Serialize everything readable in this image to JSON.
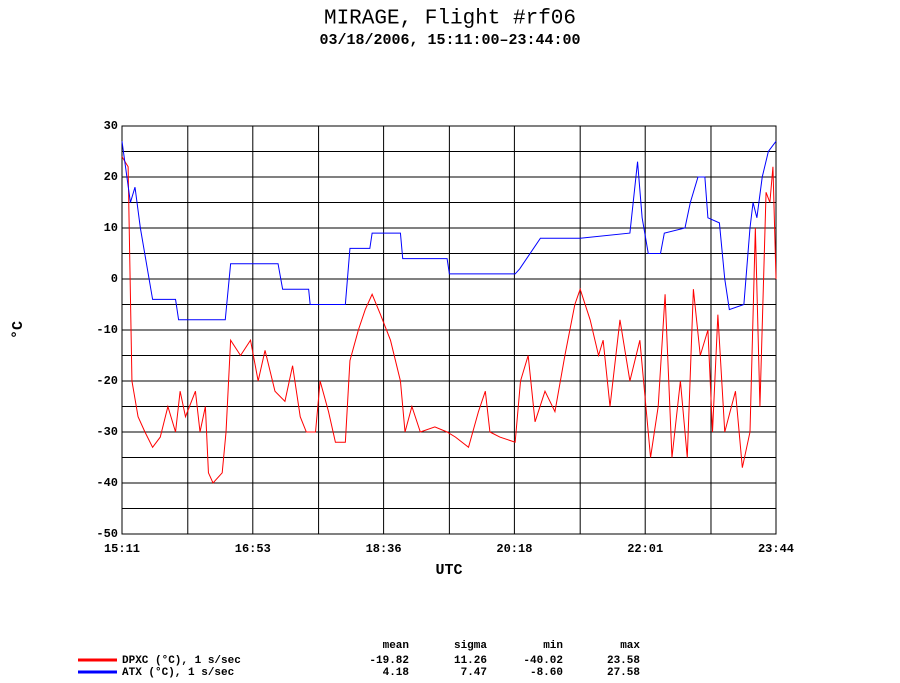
{
  "chart_data": {
    "type": "line",
    "title": "MIRAGE, Flight #rf06",
    "subtitle": "03/18/2006, 15:11:00–23:44:00",
    "x_label": "UTC",
    "y_label": "°C",
    "xlim": [
      15.18,
      23.73
    ],
    "xticks": [
      {
        "value": 15.18,
        "label": "15:11"
      },
      {
        "value": 16.89,
        "label": "16:53"
      },
      {
        "value": 18.6,
        "label": "18:36"
      },
      {
        "value": 20.31,
        "label": "20:18"
      },
      {
        "value": 22.02,
        "label": "22:01"
      },
      {
        "value": 23.73,
        "label": "23:44"
      }
    ],
    "minor_xticks": [
      16.04,
      17.75,
      19.46,
      21.17,
      22.88
    ],
    "ylim": [
      -50,
      30
    ],
    "yticks": [
      -50,
      -40,
      -30,
      -20,
      -10,
      0,
      10,
      20,
      30
    ],
    "minor_yticks": [
      -45,
      -35,
      -25,
      -15,
      -5,
      5,
      15,
      25
    ],
    "grid": true,
    "stats_columns": [
      "mean",
      "sigma",
      "min",
      "max"
    ],
    "series": [
      {
        "name": "DPXC (°C), 1 s/sec",
        "color": "#ff0000",
        "x": [
          15.18,
          15.26,
          15.31,
          15.39,
          15.48,
          15.58,
          15.68,
          15.78,
          15.88,
          15.94,
          16.01,
          16.14,
          16.2,
          16.27,
          16.31,
          16.37,
          16.49,
          16.54,
          16.6,
          16.73,
          16.86,
          16.96,
          17.05,
          17.18,
          17.31,
          17.41,
          17.51,
          17.59,
          17.71,
          17.77,
          17.88,
          17.97,
          18.1,
          18.16,
          18.27,
          18.36,
          18.45,
          18.56,
          18.69,
          18.82,
          18.88,
          18.97,
          19.08,
          19.27,
          19.43,
          19.54,
          19.71,
          19.84,
          19.93,
          19.99,
          20.12,
          20.32,
          20.39,
          20.49,
          20.58,
          20.71,
          20.84,
          20.97,
          21.1,
          21.17,
          21.3,
          21.41,
          21.47,
          21.56,
          21.69,
          21.82,
          21.95,
          22.09,
          22.19,
          22.28,
          22.37,
          22.48,
          22.57,
          22.65,
          22.74,
          22.84,
          22.9,
          22.97,
          23.06,
          23.2,
          23.29,
          23.39,
          23.46,
          23.52,
          23.6,
          23.65,
          23.69,
          23.73
        ],
        "values": [
          24,
          22,
          -20,
          -27,
          -30,
          -33,
          -31,
          -25,
          -30,
          -22,
          -27,
          -22,
          -30,
          -25,
          -38,
          -40,
          -38,
          -30,
          -12,
          -15,
          -12,
          -20,
          -14,
          -22,
          -24,
          -17,
          -27,
          -30,
          -30,
          -20,
          -26,
          -32,
          -32,
          -16,
          -10,
          -6,
          -3,
          -7,
          -12,
          -20,
          -30,
          -25,
          -30,
          -29,
          -30,
          -31,
          -33,
          -26,
          -22,
          -30,
          -31,
          -32,
          -20,
          -15,
          -28,
          -22,
          -26,
          -15,
          -5,
          -2,
          -8,
          -15,
          -12,
          -25,
          -8,
          -20,
          -12,
          -35,
          -25,
          -3,
          -35,
          -20,
          -35,
          -2,
          -15,
          -10,
          -30,
          -7,
          -30,
          -22,
          -37,
          -30,
          10,
          -25,
          17,
          15,
          22,
          0
        ],
        "stats": [
          -19.82,
          11.26,
          -40.02,
          23.58
        ]
      },
      {
        "name": "ATX (°C), 1 s/sec",
        "color": "#0000ff",
        "x": [
          15.18,
          15.29,
          15.35,
          15.42,
          15.58,
          15.88,
          15.92,
          16.53,
          16.6,
          17.22,
          17.28,
          17.62,
          17.64,
          18.1,
          18.16,
          18.42,
          18.45,
          18.82,
          18.85,
          19.43,
          19.46,
          20.32,
          20.38,
          20.65,
          21.17,
          21.82,
          21.92,
          21.98,
          22.06,
          22.22,
          22.27,
          22.54,
          22.61,
          22.71,
          22.8,
          22.84,
          22.99,
          23.06,
          23.12,
          23.31,
          23.39,
          23.43,
          23.48,
          23.55,
          23.63,
          23.73
        ],
        "values": [
          27,
          15,
          18,
          10,
          -4,
          -4,
          -8,
          -8,
          3,
          3,
          -2,
          -2,
          -5,
          -5,
          6,
          6,
          9,
          9,
          4,
          4,
          1,
          1,
          2,
          8,
          8,
          9,
          23,
          12,
          5,
          5,
          9,
          10,
          15,
          20,
          20,
          12,
          11,
          0,
          -6,
          -5,
          10,
          15,
          12,
          20,
          25,
          27
        ],
        "stats": [
          4.18,
          7.47,
          {
            "value": -8.6,
            "label": "-8.60"
          },
          27.58
        ]
      }
    ]
  }
}
